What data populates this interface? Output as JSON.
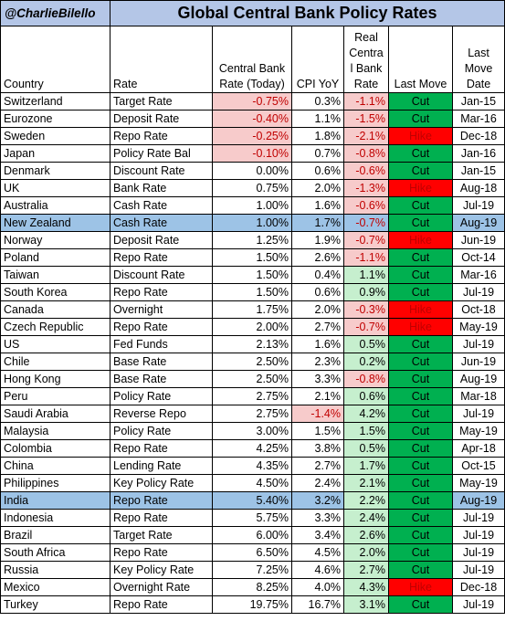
{
  "handle": "@CharlieBilello",
  "title": "Global Central Bank Policy Rates",
  "headers": {
    "country": "Country",
    "rate": "Rate",
    "central_bank_rate": "Central Bank Rate (Today)",
    "cpi": "CPI YoY",
    "real_rate": "Real Centra l Bank Rate",
    "last_move": "Last Move",
    "last_move_date": "Last Move Date"
  },
  "colors": {
    "header_fill": "#b4c6e7",
    "highlight_row": "#9dc3e6",
    "negative_text": "#c00000",
    "negative_rate_fill": "#f7cbcb",
    "positive_real_fill": "#c6efce",
    "cut_fill": "#00b050",
    "hike_fill": "#ff0000"
  },
  "rows": [
    {
      "country": "Switzerland",
      "rate": "Target Rate",
      "cb": "-0.75%",
      "cpi": "0.3%",
      "real": "-1.1%",
      "move": "Cut",
      "date": "Jan-15"
    },
    {
      "country": "Eurozone",
      "rate": "Deposit Rate",
      "cb": "-0.40%",
      "cpi": "1.1%",
      "real": "-1.5%",
      "move": "Cut",
      "date": "Mar-16"
    },
    {
      "country": "Sweden",
      "rate": "Repo Rate",
      "cb": "-0.25%",
      "cpi": "1.8%",
      "real": "-2.1%",
      "move": "Hike",
      "date": "Dec-18"
    },
    {
      "country": "Japan",
      "rate": "Policy Rate Bal",
      "cb": "-0.10%",
      "cpi": "0.7%",
      "real": "-0.8%",
      "move": "Cut",
      "date": "Jan-16"
    },
    {
      "country": "Denmark",
      "rate": "Discount Rate",
      "cb": "0.00%",
      "cpi": "0.6%",
      "real": "-0.6%",
      "move": "Cut",
      "date": "Jan-15"
    },
    {
      "country": "UK",
      "rate": "Bank Rate",
      "cb": "0.75%",
      "cpi": "2.0%",
      "real": "-1.3%",
      "move": "Hike",
      "date": "Aug-18"
    },
    {
      "country": "Australia",
      "rate": "Cash Rate",
      "cb": "1.00%",
      "cpi": "1.6%",
      "real": "-0.6%",
      "move": "Cut",
      "date": "Jul-19"
    },
    {
      "country": "New Zealand",
      "rate": "Cash Rate",
      "cb": "1.00%",
      "cpi": "1.7%",
      "real": "-0.7%",
      "move": "Cut",
      "date": "Aug-19",
      "highlight": true
    },
    {
      "country": "Norway",
      "rate": "Deposit Rate",
      "cb": "1.25%",
      "cpi": "1.9%",
      "real": "-0.7%",
      "move": "Hike",
      "date": "Jun-19"
    },
    {
      "country": "Poland",
      "rate": "Repo Rate",
      "cb": "1.50%",
      "cpi": "2.6%",
      "real": "-1.1%",
      "move": "Cut",
      "date": "Oct-14"
    },
    {
      "country": "Taiwan",
      "rate": "Discount Rate",
      "cb": "1.50%",
      "cpi": "0.4%",
      "real": "1.1%",
      "move": "Cut",
      "date": "Mar-16"
    },
    {
      "country": "South Korea",
      "rate": "Repo Rate",
      "cb": "1.50%",
      "cpi": "0.6%",
      "real": "0.9%",
      "move": "Cut",
      "date": "Jul-19"
    },
    {
      "country": "Canada",
      "rate": "Overnight",
      "cb": "1.75%",
      "cpi": "2.0%",
      "real": "-0.3%",
      "move": "Hike",
      "date": "Oct-18"
    },
    {
      "country": "Czech Republic",
      "rate": "Repo Rate",
      "cb": "2.00%",
      "cpi": "2.7%",
      "real": "-0.7%",
      "move": "Hike",
      "date": "May-19"
    },
    {
      "country": "US",
      "rate": "Fed Funds",
      "cb": "2.13%",
      "cpi": "1.6%",
      "real": "0.5%",
      "move": "Cut",
      "date": "Jul-19"
    },
    {
      "country": "Chile",
      "rate": "Base Rate",
      "cb": "2.50%",
      "cpi": "2.3%",
      "real": "0.2%",
      "move": "Cut",
      "date": "Jun-19"
    },
    {
      "country": "Hong Kong",
      "rate": "Base Rate",
      "cb": "2.50%",
      "cpi": "3.3%",
      "real": "-0.8%",
      "move": "Cut",
      "date": "Aug-19"
    },
    {
      "country": "Peru",
      "rate": "Policy Rate",
      "cb": "2.75%",
      "cpi": "2.1%",
      "real": "0.6%",
      "move": "Cut",
      "date": "Mar-18"
    },
    {
      "country": "Saudi Arabia",
      "rate": "Reverse Repo",
      "cb": "2.75%",
      "cpi": "-1.4%",
      "real": "4.2%",
      "move": "Cut",
      "date": "Jul-19"
    },
    {
      "country": "Malaysia",
      "rate": "Policy Rate",
      "cb": "3.00%",
      "cpi": "1.5%",
      "real": "1.5%",
      "move": "Cut",
      "date": "May-19"
    },
    {
      "country": "Colombia",
      "rate": "Repo Rate",
      "cb": "4.25%",
      "cpi": "3.8%",
      "real": "0.5%",
      "move": "Cut",
      "date": "Apr-18"
    },
    {
      "country": "China",
      "rate": "Lending Rate",
      "cb": "4.35%",
      "cpi": "2.7%",
      "real": "1.7%",
      "move": "Cut",
      "date": "Oct-15"
    },
    {
      "country": "Philippines",
      "rate": "Key Policy Rate",
      "cb": "4.50%",
      "cpi": "2.4%",
      "real": "2.1%",
      "move": "Cut",
      "date": "May-19"
    },
    {
      "country": "India",
      "rate": "Repo Rate",
      "cb": "5.40%",
      "cpi": "3.2%",
      "real": "2.2%",
      "move": "Cut",
      "date": "Aug-19",
      "highlight": true
    },
    {
      "country": "Indonesia",
      "rate": "Repo Rate",
      "cb": "5.75%",
      "cpi": "3.3%",
      "real": "2.4%",
      "move": "Cut",
      "date": "Jul-19"
    },
    {
      "country": "Brazil",
      "rate": "Target Rate",
      "cb": "6.00%",
      "cpi": "3.4%",
      "real": "2.6%",
      "move": "Cut",
      "date": "Jul-19"
    },
    {
      "country": "South Africa",
      "rate": "Repo Rate",
      "cb": "6.50%",
      "cpi": "4.5%",
      "real": "2.0%",
      "move": "Cut",
      "date": "Jul-19"
    },
    {
      "country": "Russia",
      "rate": "Key Policy Rate",
      "cb": "7.25%",
      "cpi": "4.6%",
      "real": "2.7%",
      "move": "Cut",
      "date": "Jul-19"
    },
    {
      "country": "Mexico",
      "rate": "Overnight Rate",
      "cb": "8.25%",
      "cpi": "4.0%",
      "real": "4.3%",
      "move": "Hike",
      "date": "Dec-18"
    },
    {
      "country": "Turkey",
      "rate": "Repo Rate",
      "cb": "19.75%",
      "cpi": "16.7%",
      "real": "3.1%",
      "move": "Cut",
      "date": "Jul-19"
    }
  ]
}
